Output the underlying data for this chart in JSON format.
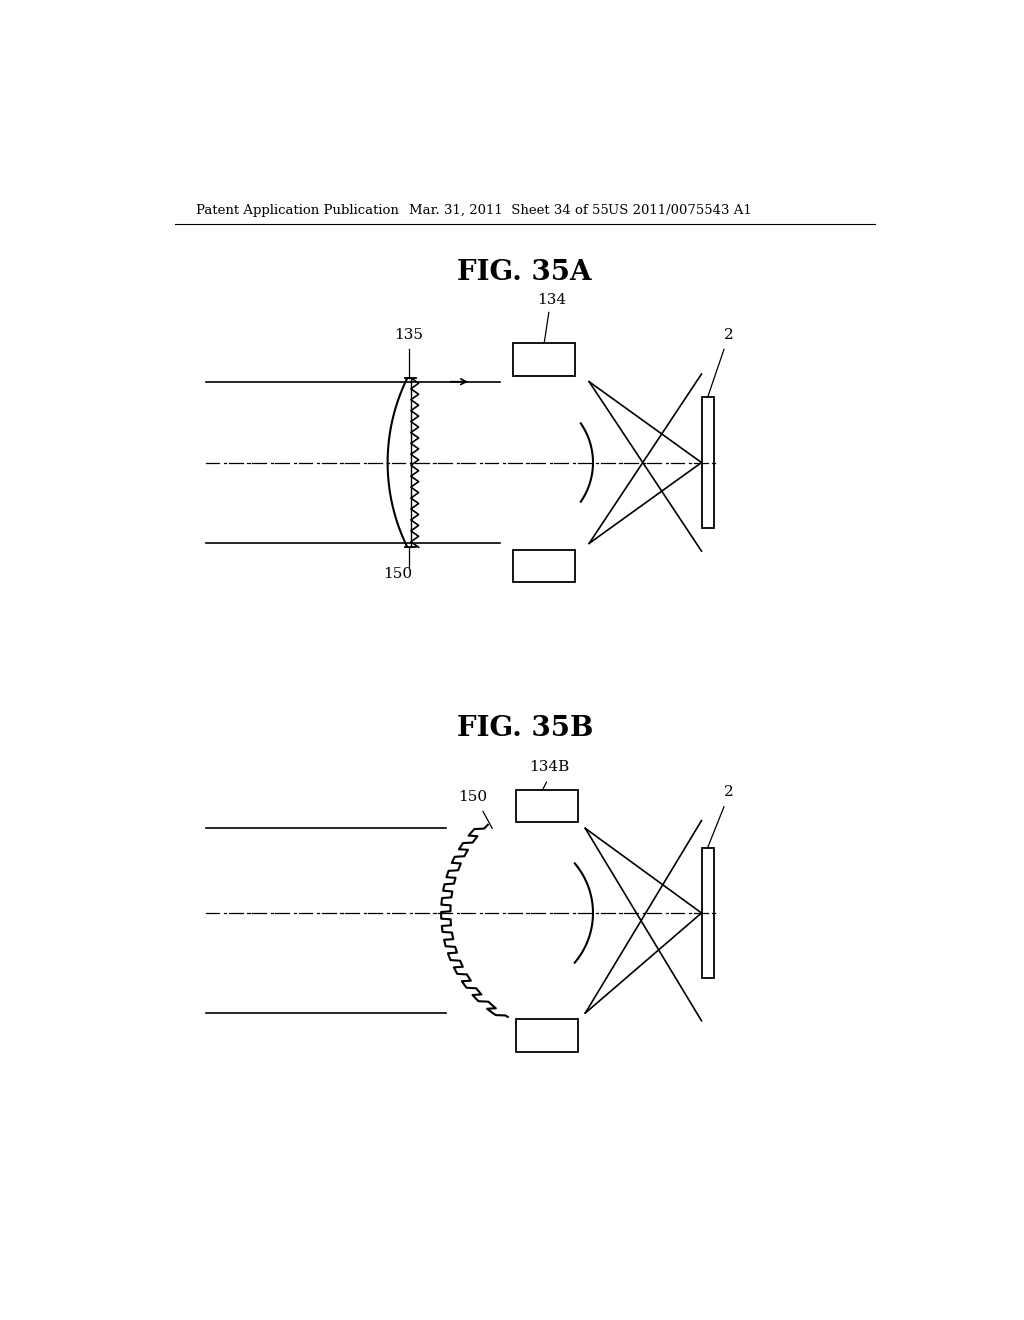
{
  "bg_color": "#ffffff",
  "line_color": "#000000",
  "header_left": "Patent Application Publication",
  "header_mid": "Mar. 31, 2011  Sheet 34 of 55",
  "header_right": "US 2011/0075543 A1",
  "fig_a_title": "FIG. 35A",
  "fig_b_title": "FIG. 35B"
}
